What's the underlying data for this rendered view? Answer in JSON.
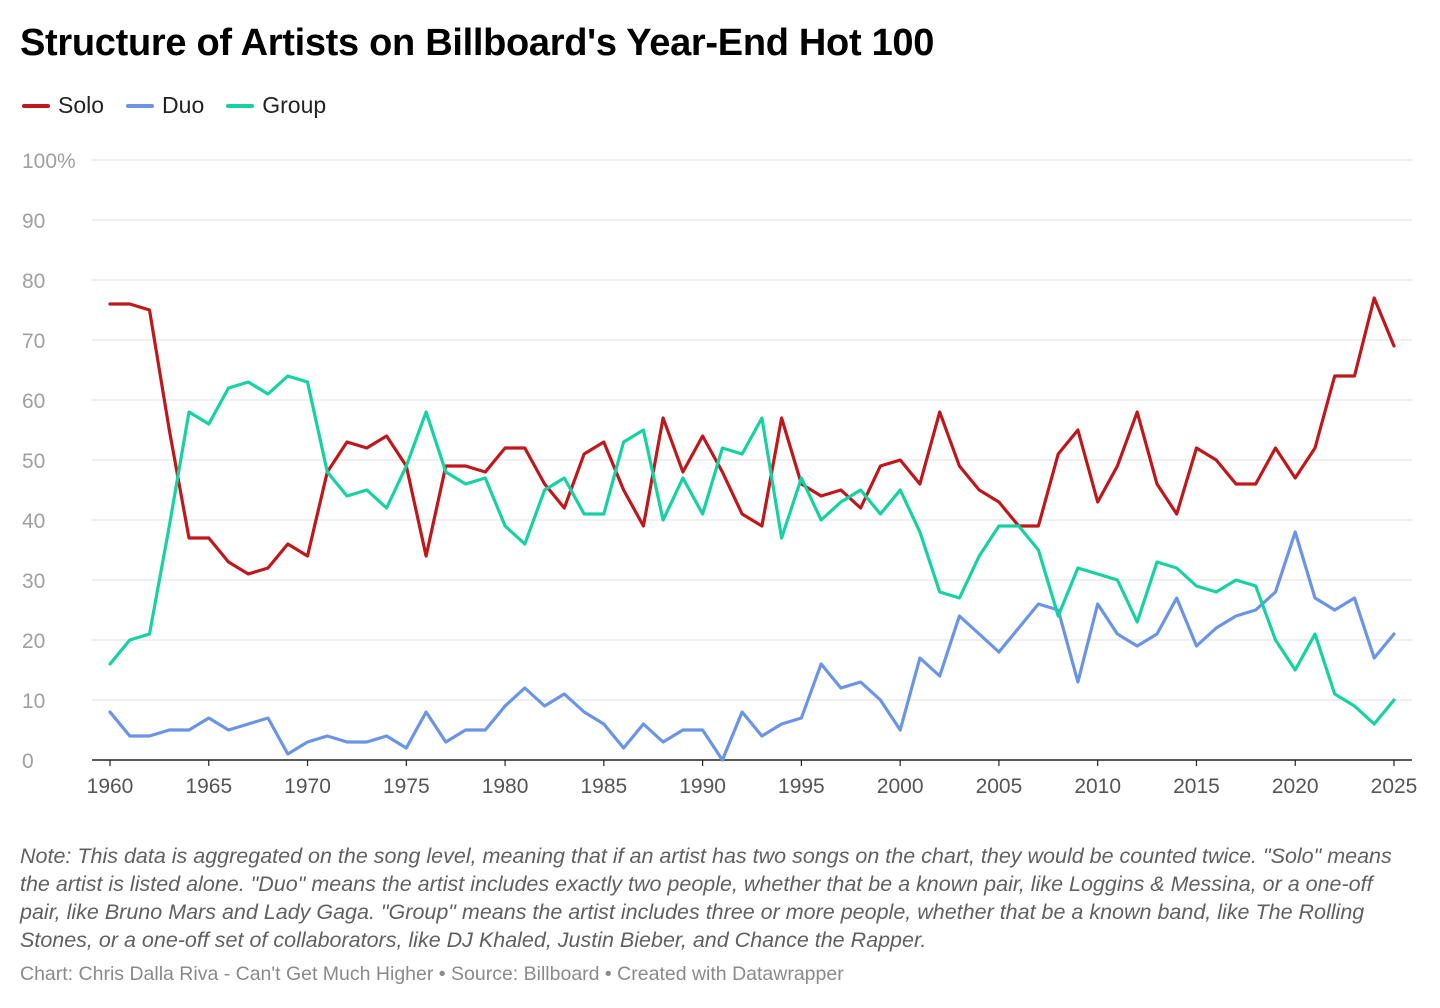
{
  "header": {
    "title": "Structure of Artists on Billboard's Year-End Hot 100"
  },
  "legend": [
    {
      "label": "Solo",
      "color": "#c0171b"
    },
    {
      "label": "Duo",
      "color": "#6a94e5"
    },
    {
      "label": "Group",
      "color": "#15d3a1"
    }
  ],
  "chart_data": {
    "type": "line",
    "title": "Structure of Artists on Billboard's Year-End Hot 100",
    "xlabel": "",
    "ylabel": "",
    "xlim": [
      1960,
      2025
    ],
    "ylim": [
      0,
      100
    ],
    "y_ticks": [
      0,
      10,
      20,
      30,
      40,
      50,
      60,
      70,
      80,
      90,
      100
    ],
    "y_tick_labels": [
      "0",
      "10",
      "20",
      "30",
      "40",
      "50",
      "60",
      "70",
      "80",
      "90",
      "100%"
    ],
    "x_ticks": [
      1960,
      1965,
      1970,
      1975,
      1980,
      1985,
      1990,
      1995,
      2000,
      2005,
      2010,
      2015,
      2020,
      2025
    ],
    "grid": true,
    "legend_position": "top-left",
    "x": [
      1960,
      1961,
      1962,
      1963,
      1964,
      1965,
      1966,
      1967,
      1968,
      1969,
      1970,
      1971,
      1972,
      1973,
      1974,
      1975,
      1976,
      1977,
      1978,
      1979,
      1980,
      1981,
      1982,
      1983,
      1984,
      1985,
      1986,
      1987,
      1988,
      1989,
      1990,
      1991,
      1992,
      1993,
      1994,
      1995,
      1996,
      1997,
      1998,
      1999,
      2000,
      2001,
      2002,
      2003,
      2004,
      2005,
      2006,
      2007,
      2008,
      2009,
      2010,
      2011,
      2012,
      2013,
      2014,
      2015,
      2016,
      2017,
      2018,
      2019,
      2020,
      2021,
      2022,
      2023,
      2024,
      2025
    ],
    "series": [
      {
        "name": "Solo",
        "color": "#c0171b",
        "values": [
          76,
          76,
          75,
          55,
          37,
          37,
          33,
          31,
          32,
          36,
          34,
          48,
          53,
          52,
          54,
          49,
          34,
          49,
          49,
          48,
          52,
          52,
          46,
          42,
          51,
          53,
          45,
          39,
          57,
          48,
          54,
          48,
          41,
          39,
          57,
          46,
          44,
          45,
          42,
          49,
          50,
          46,
          58,
          49,
          45,
          43,
          39,
          39,
          51,
          55,
          43,
          49,
          58,
          46,
          41,
          52,
          50,
          46,
          46,
          52,
          47,
          52,
          64,
          64,
          77,
          69
        ]
      },
      {
        "name": "Duo",
        "color": "#6a94e5",
        "values": [
          8,
          4,
          4,
          5,
          5,
          7,
          5,
          6,
          7,
          1,
          3,
          4,
          3,
          3,
          4,
          2,
          8,
          3,
          5,
          5,
          9,
          12,
          9,
          11,
          8,
          6,
          2,
          6,
          3,
          5,
          5,
          0,
          8,
          4,
          6,
          7,
          16,
          12,
          13,
          10,
          5,
          17,
          14,
          24,
          21,
          18,
          22,
          26,
          25,
          13,
          26,
          21,
          19,
          21,
          27,
          19,
          22,
          24,
          25,
          28,
          38,
          27,
          25,
          27,
          17,
          21
        ]
      },
      {
        "name": "Group",
        "color": "#15d3a1",
        "values": [
          16,
          20,
          21,
          39,
          58,
          56,
          62,
          63,
          61,
          64,
          63,
          48,
          44,
          45,
          42,
          49,
          58,
          48,
          46,
          47,
          39,
          36,
          45,
          47,
          41,
          41,
          53,
          55,
          40,
          47,
          41,
          52,
          51,
          57,
          37,
          47,
          40,
          43,
          45,
          41,
          45,
          38,
          28,
          27,
          34,
          39,
          39,
          35,
          24,
          32,
          31,
          30,
          23,
          33,
          32,
          29,
          28,
          30,
          29,
          20,
          15,
          21,
          11,
          9,
          6,
          10
        ]
      }
    ]
  },
  "note": "Note: This data is aggregated on the song level, meaning that if an artist has two songs on the chart, they would be counted twice. \"Solo\" means the artist is listed alone. \"Duo\" means the artist includes exactly two people, whether that be a known pair, like Loggins & Messina, or a one-off pair, like Bruno Mars and Lady Gaga. \"Group\" means the artist includes three or more people, whether that be a known band, like The Rolling Stones, or a one-off set of collaborators, like DJ Khaled, Justin Bieber, and Chance the Rapper.",
  "footer": "Chart: Chris Dalla Riva - Can't Get Much Higher • Source: Billboard • Created with Datawrapper"
}
